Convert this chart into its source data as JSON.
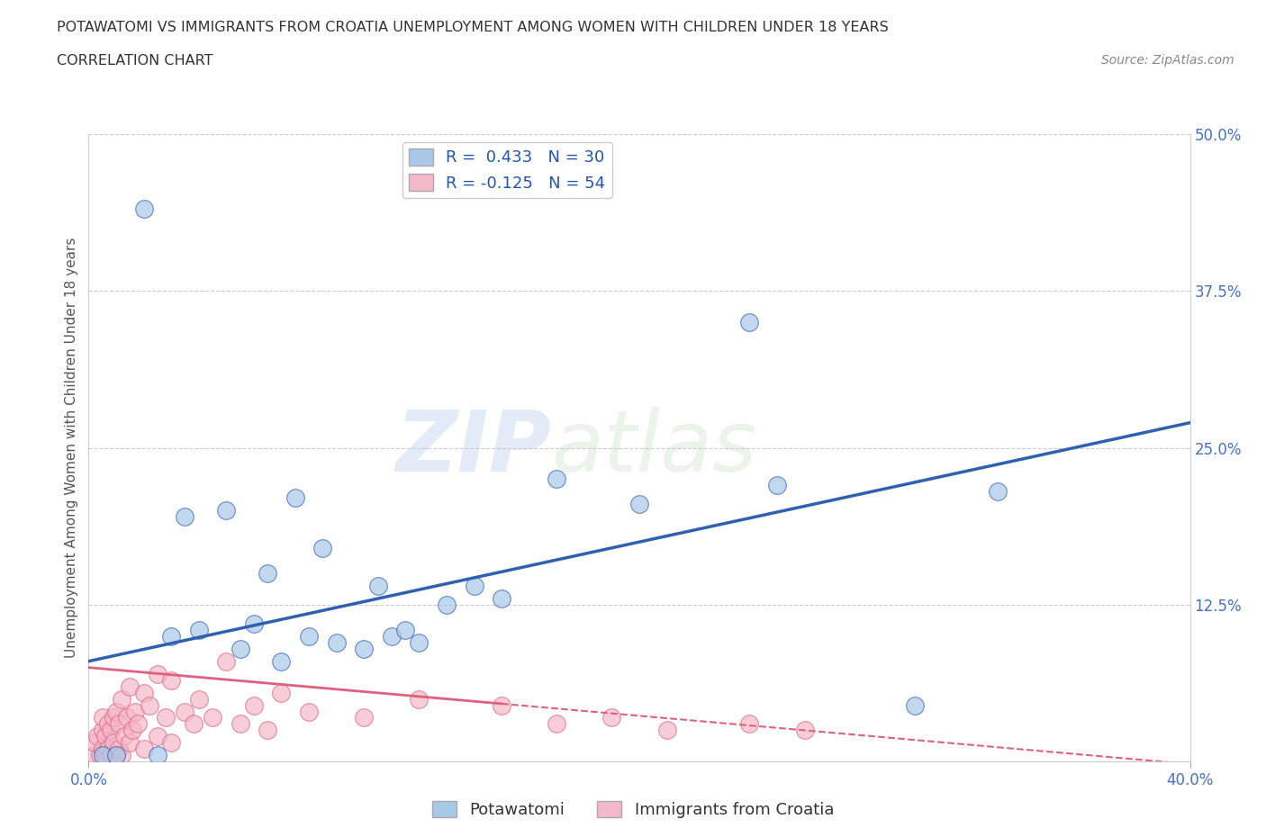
{
  "title_line1": "POTAWATOMI VS IMMIGRANTS FROM CROATIA UNEMPLOYMENT AMONG WOMEN WITH CHILDREN UNDER 18 YEARS",
  "title_line2": "CORRELATION CHART",
  "source": "Source: ZipAtlas.com",
  "ylabel": "Unemployment Among Women with Children Under 18 years",
  "legend_blue_r": "R =  0.433",
  "legend_blue_n": "N = 30",
  "legend_pink_r": "R = -0.125",
  "legend_pink_n": "N = 54",
  "blue_color": "#a8c8e8",
  "pink_color": "#f4b8c8",
  "blue_line_color": "#3060b0",
  "pink_line_color": "#e06080",
  "watermark_zip": "ZIP",
  "watermark_atlas": "atlas",
  "potawatomi_x": [
    2.0,
    3.5,
    5.0,
    7.5,
    0.5,
    1.0,
    2.5,
    3.0,
    4.0,
    5.5,
    6.0,
    7.0,
    8.0,
    9.0,
    10.0,
    11.0,
    11.5,
    12.0,
    13.0,
    14.0,
    6.5,
    8.5,
    10.5,
    15.0,
    20.0,
    24.0,
    25.0,
    30.0,
    33.0,
    17.0
  ],
  "potawatomi_y": [
    44.0,
    19.5,
    20.0,
    21.0,
    0.5,
    0.5,
    0.5,
    10.0,
    10.5,
    9.0,
    11.0,
    8.0,
    10.0,
    9.5,
    9.0,
    10.0,
    10.5,
    9.5,
    12.5,
    14.0,
    15.0,
    17.0,
    14.0,
    13.0,
    20.5,
    35.0,
    22.0,
    4.5,
    21.5,
    22.5
  ],
  "croatia_x": [
    0.2,
    0.2,
    0.3,
    0.4,
    0.5,
    0.5,
    0.5,
    0.6,
    0.6,
    0.7,
    0.7,
    0.8,
    0.8,
    0.9,
    0.9,
    1.0,
    1.0,
    1.1,
    1.1,
    1.2,
    1.2,
    1.3,
    1.4,
    1.5,
    1.5,
    1.6,
    1.7,
    1.8,
    2.0,
    2.0,
    2.2,
    2.5,
    2.5,
    2.8,
    3.0,
    3.0,
    3.5,
    3.8,
    4.0,
    4.5,
    5.0,
    5.5,
    6.0,
    6.5,
    7.0,
    8.0,
    10.0,
    12.0,
    15.0,
    17.0,
    19.0,
    21.0,
    24.0,
    26.0
  ],
  "croatia_y": [
    0.5,
    1.5,
    2.0,
    0.5,
    1.0,
    2.5,
    3.5,
    0.5,
    2.0,
    1.0,
    3.0,
    0.5,
    2.5,
    1.5,
    3.5,
    0.5,
    4.0,
    1.0,
    3.0,
    0.5,
    5.0,
    2.0,
    3.5,
    1.5,
    6.0,
    2.5,
    4.0,
    3.0,
    1.0,
    5.5,
    4.5,
    2.0,
    7.0,
    3.5,
    1.5,
    6.5,
    4.0,
    3.0,
    5.0,
    3.5,
    8.0,
    3.0,
    4.5,
    2.5,
    5.5,
    4.0,
    3.5,
    5.0,
    4.5,
    3.0,
    3.5,
    2.5,
    3.0,
    2.5
  ],
  "xlim": [
    0,
    40
  ],
  "ylim": [
    0,
    50
  ],
  "bg_color": "#ffffff",
  "grid_color": "#cccccc",
  "blue_line_x0": 0,
  "blue_line_y0": 8.0,
  "blue_line_x1": 40,
  "blue_line_y1": 27.0,
  "pink_line_x0": 0,
  "pink_line_y0": 7.5,
  "pink_line_x1": 26,
  "pink_line_y1": 2.5
}
